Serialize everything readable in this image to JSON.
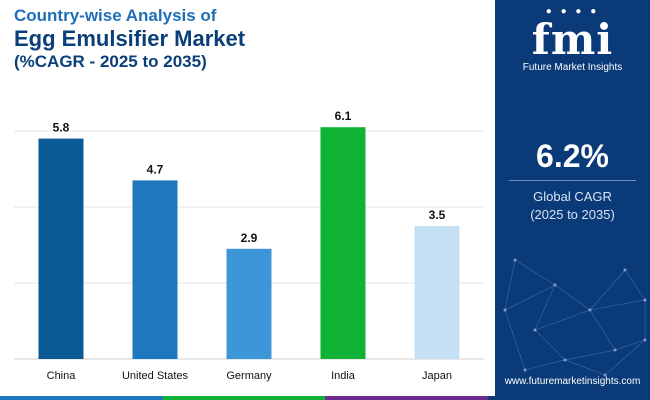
{
  "header": {
    "line1": "Country-wise Analysis of",
    "line2": "Egg Emulsifier Market",
    "line3": "(%CAGR - 2025 to 2035)"
  },
  "chart_data": {
    "type": "bar",
    "categories": [
      "China",
      "United States",
      "Germany",
      "India",
      "Japan"
    ],
    "values": [
      5.8,
      4.7,
      2.9,
      6.1,
      3.5
    ],
    "bar_colors": [
      "#0a5a96",
      "#1f77bd",
      "#3c96d8",
      "#10b236",
      "#c5e0f3"
    ],
    "ylim": [
      0,
      6.5
    ],
    "grid": true
  },
  "panel": {
    "logo_text": "fmi",
    "logo_subtitle": "Future Market Insights",
    "kpi_value": "6.2%",
    "kpi_label_line1": "Global CAGR",
    "kpi_label_line2": "(2025 to 2035)",
    "website": "www.futuremarketinsights.com"
  },
  "colors": {
    "panel_bg": "#0a3a78",
    "footer": [
      "#1f77bd",
      "#10b236",
      "#6a2c91",
      "#0a3a78"
    ]
  }
}
